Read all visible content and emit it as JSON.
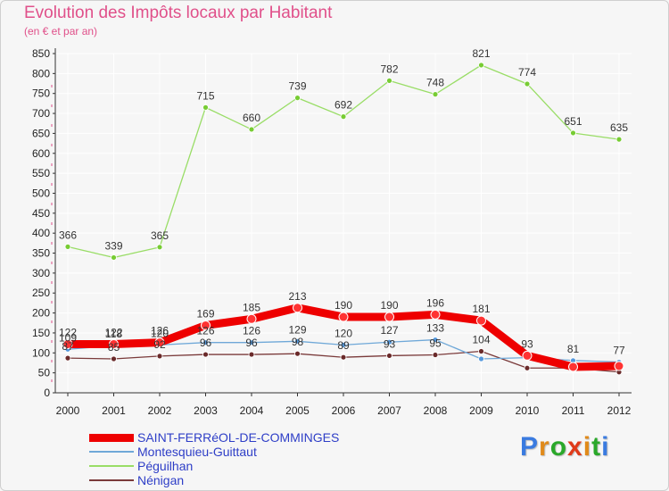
{
  "title": "Evolution des Impôts locaux par Habitant",
  "subtitle": "(en € et par an)",
  "brand": "Proxiti",
  "colors": {
    "title": "#e0508a",
    "grid": "#ffffff",
    "axis": "#333333",
    "legend_text": "#2e3ec7",
    "brand_letters": [
      "#3a7be0",
      "#e08a1a",
      "#2aa82a",
      "#e03a1a",
      "#e08a1a",
      "#2aa82a",
      "#3a7be0"
    ]
  },
  "chart_data": {
    "type": "line",
    "title": "Evolution des Impôts locaux par Habitant",
    "subtitle": "(en € et par an)",
    "xlabel": "",
    "ylabel": "",
    "ylim": [
      0,
      850
    ],
    "yticks": [
      "0",
      "50",
      "100",
      "150",
      "200",
      "250",
      "300",
      "350",
      "400",
      "450",
      "500",
      "550",
      "600",
      "650",
      "700",
      "750",
      "800",
      "850"
    ],
    "x": [
      "2000",
      "2001",
      "2002",
      "2003",
      "2004",
      "2005",
      "2006",
      "2007",
      "2008",
      "2009",
      "2010",
      "2011",
      "2012"
    ],
    "series": [
      {
        "name": "SAINT-FERRéOL-DE-COMMINGES",
        "color": "#ee0000",
        "marker": "#ff3333",
        "style": "thick",
        "values": [
          122,
          122,
          126,
          169,
          185,
          213,
          190,
          190,
          196,
          181,
          93,
          65,
          67
        ],
        "labels": [
          "122",
          "122",
          "126",
          "169",
          "185",
          "213",
          "190",
          "190",
          "196",
          "181",
          "93",
          "",
          ""
        ]
      },
      {
        "name": "Montesquieu-Guittaut",
        "color": "#6fa8d8",
        "marker": "#5599dd",
        "style": "thin",
        "values": [
          109,
          118,
          120,
          126,
          126,
          129,
          120,
          127,
          133,
          85,
          88,
          81,
          77
        ],
        "labels": [
          "109",
          "118",
          "120",
          "126",
          "126",
          "129",
          "120",
          "127",
          "133",
          "",
          "",
          "81",
          "77"
        ]
      },
      {
        "name": "Péguilhan",
        "color": "#99dd66",
        "marker": "#77cc33",
        "style": "thin",
        "values": [
          366,
          339,
          365,
          715,
          660,
          739,
          692,
          782,
          748,
          821,
          774,
          651,
          635
        ],
        "labels": [
          "366",
          "339",
          "365",
          "715",
          "660",
          "739",
          "692",
          "782",
          "748",
          "821",
          "774",
          "651",
          "635"
        ]
      },
      {
        "name": "Nénigan",
        "color": "#7a3a3a",
        "marker": "#6a2a2a",
        "style": "thin",
        "values": [
          87,
          85,
          92,
          96,
          96,
          98,
          89,
          93,
          95,
          104,
          62,
          62,
          52
        ],
        "labels": [
          "87",
          "85",
          "92",
          "96",
          "96",
          "98",
          "89",
          "93",
          "95",
          "104",
          "",
          "",
          ""
        ]
      }
    ],
    "legend_position": "bottom-left"
  }
}
